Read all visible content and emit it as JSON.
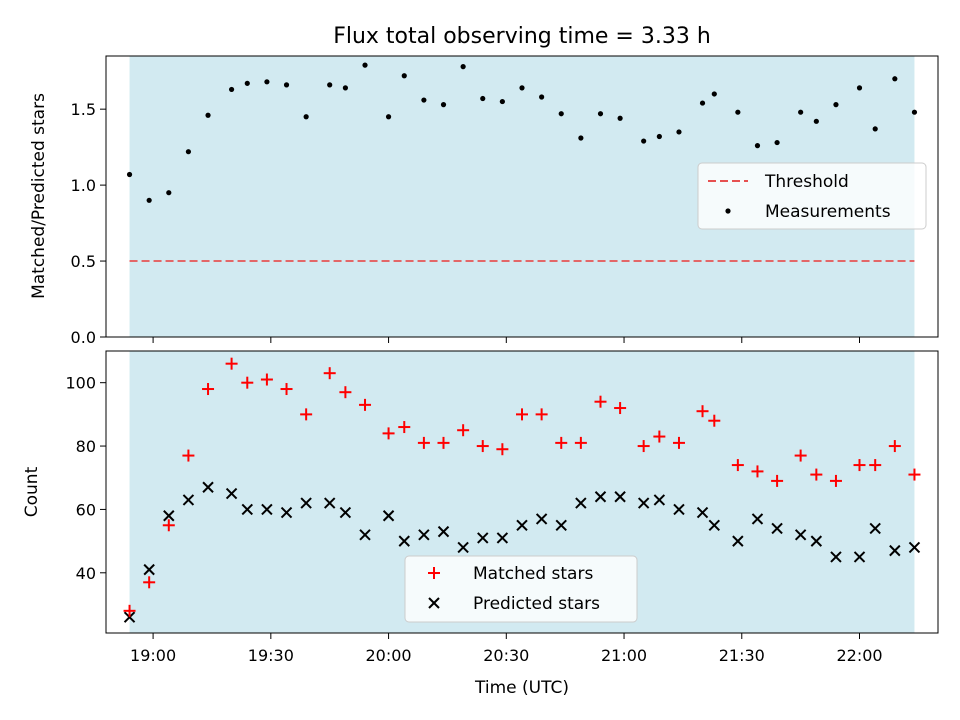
{
  "chart_data": {
    "type": "scatter",
    "title": "Flux total observing time = 3.33 h",
    "xlabel": "Time (UTC)",
    "x_ticks": [
      "19:00",
      "19:30",
      "20:00",
      "20:30",
      "21:00",
      "21:30",
      "22:00"
    ],
    "x_range": [
      "18:48",
      "22:20"
    ],
    "shaded_interval": [
      "18:54",
      "22:14"
    ],
    "times": [
      "18:54",
      "18:59",
      "19:04",
      "19:09",
      "19:14",
      "19:20",
      "19:24",
      "19:29",
      "19:34",
      "19:39",
      "19:45",
      "19:49",
      "19:54",
      "20:00",
      "20:04",
      "20:09",
      "20:14",
      "20:19",
      "20:24",
      "20:29",
      "20:34",
      "20:39",
      "20:44",
      "20:49",
      "20:54",
      "20:59",
      "21:05",
      "21:09",
      "21:14",
      "21:20",
      "21:23",
      "21:29",
      "21:34",
      "21:39",
      "21:45",
      "21:49",
      "21:54",
      "22:00",
      "22:04",
      "22:09",
      "22:14"
    ],
    "top": {
      "ylabel": "Matched/Predicted stars",
      "ylim": [
        0,
        1.85
      ],
      "y_ticks": [
        "0.0",
        "0.5",
        "1.0",
        "1.5"
      ],
      "threshold": 0.5,
      "ratio": [
        1.07,
        0.9,
        0.95,
        1.22,
        1.46,
        1.63,
        1.67,
        1.68,
        1.66,
        1.45,
        1.66,
        1.64,
        1.79,
        1.45,
        1.72,
        1.56,
        1.53,
        1.78,
        1.57,
        1.55,
        1.64,
        1.58,
        1.47,
        1.31,
        1.47,
        1.44,
        1.29,
        1.32,
        1.35,
        1.54,
        1.6,
        1.48,
        1.26,
        1.28,
        1.48,
        1.42,
        1.53,
        1.64,
        1.37,
        1.7,
        1.48
      ],
      "legend": {
        "position": "center-right",
        "entries": [
          "Threshold",
          "Measurements"
        ]
      }
    },
    "bottom": {
      "ylabel": "Count",
      "ylim": [
        21,
        110
      ],
      "y_ticks": [
        "40",
        "60",
        "80",
        "100"
      ],
      "series": [
        {
          "name": "Matched stars",
          "marker": "plus",
          "values": [
            28,
            37,
            55,
            77,
            98,
            106,
            100,
            101,
            98,
            90,
            103,
            97,
            93,
            84,
            86,
            81,
            81,
            85,
            80,
            79,
            90,
            90,
            81,
            81,
            94,
            92,
            80,
            83,
            81,
            91,
            88,
            74,
            72,
            69,
            77,
            71,
            69,
            74,
            74,
            80,
            71
          ]
        },
        {
          "name": "Predicted stars",
          "marker": "x",
          "values": [
            26,
            41,
            58,
            63,
            67,
            65,
            60,
            60,
            59,
            62,
            62,
            59,
            52,
            58,
            50,
            52,
            53,
            48,
            51,
            51,
            55,
            57,
            55,
            62,
            64,
            64,
            62,
            63,
            60,
            59,
            55,
            50,
            57,
            54,
            52,
            50,
            45,
            45,
            54,
            47,
            48
          ]
        }
      ],
      "legend": {
        "position": "lower-center",
        "entries": [
          "Matched stars",
          "Predicted stars"
        ]
      }
    },
    "colors": {
      "shade": "#add8e6",
      "threshold": "#e65050",
      "measurements": "#000000",
      "matched": "#ff0000",
      "predicted": "#000000"
    },
    "grid": false
  }
}
